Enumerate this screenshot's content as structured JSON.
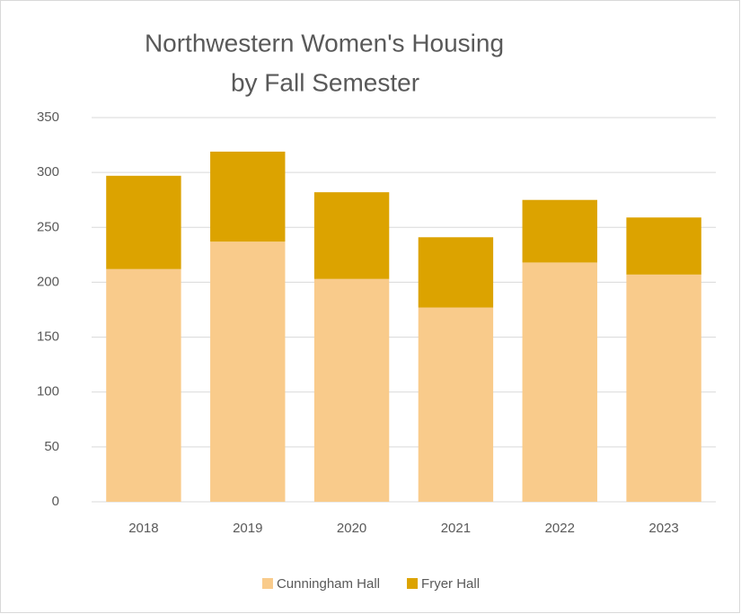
{
  "chart_data": {
    "type": "stacked_bar",
    "title": [
      "Northwestern Women's Housing",
      "by Fall Semester"
    ],
    "categories": [
      "2018",
      "2019",
      "2020",
      "2021",
      "2022",
      "2023"
    ],
    "series": [
      {
        "name": "Cunningham Hall",
        "color": "#f9cb8b",
        "values": [
          212,
          237,
          203,
          177,
          218,
          207
        ]
      },
      {
        "name": "Fryer Hall",
        "color": "#dca300",
        "values": [
          85,
          82,
          79,
          64,
          57,
          52
        ]
      }
    ],
    "ylim": [
      0,
      350
    ],
    "yticks": [
      0,
      50,
      100,
      150,
      200,
      250,
      300,
      350
    ],
    "grid": true,
    "legend": "bottom"
  }
}
